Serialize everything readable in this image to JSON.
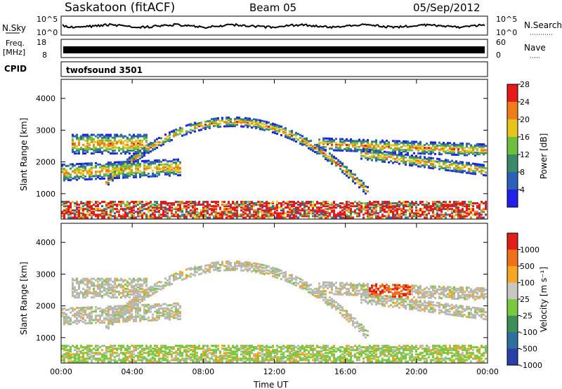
{
  "header": {
    "station": "Saskatoon (fitACF)",
    "beam": "Beam 05",
    "date": "05/Sep/2012"
  },
  "panels": {
    "nsky_label": "N.Sky",
    "nsearch_label": "N.Search",
    "freq_label_1": "Freq.",
    "freq_label_2": "[MHz]",
    "nave_label": "Nave",
    "cpid_label": "CPID",
    "cpid_value": "twofsound 3501",
    "nsky_ticks": [
      "10^5",
      "10^0"
    ],
    "nsearch_ticks": [
      "10^5",
      "10^0"
    ],
    "freq_ticks": [
      "18",
      "8"
    ],
    "nave_ticks": [
      "60",
      "0"
    ]
  },
  "chart_data": [
    {
      "type": "heatmap",
      "name": "power",
      "ylabel": "Slant Range [km]",
      "xlabel": "",
      "ylim": [
        200,
        4600
      ],
      "yticks": [
        "1000",
        "2000",
        "3000",
        "4000"
      ],
      "colorbar_label": "Power [dB]",
      "colorbar_ticks": [
        "4",
        "8",
        "12",
        "16",
        "20",
        "24",
        "28"
      ],
      "colors": [
        "#2020e8",
        "#2c5fb8",
        "#3a8a6a",
        "#6fbf3f",
        "#e6c41c",
        "#f07c1a",
        "#e41a1a"
      ]
    },
    {
      "type": "heatmap",
      "name": "velocity",
      "ylabel": "Slant Range [km]",
      "xlabel": "Time UT",
      "ylim": [
        200,
        4600
      ],
      "yticks": [
        "1000",
        "2000",
        "3000",
        "4000"
      ],
      "xticks": [
        "00:00",
        "04:00",
        "08:00",
        "12:00",
        "16:00",
        "20:00",
        "00:00"
      ],
      "colorbar_label": "Velocity [m s⁻¹]",
      "colorbar_ticks": [
        "1000",
        "500",
        "100",
        "25",
        "-25",
        "-100",
        "-500",
        "-1000"
      ],
      "colors": [
        "#2b3fa8",
        "#2f6fa0",
        "#3d8f57",
        "#7ac943",
        "#c8c8c0",
        "#f5a623",
        "#f07018",
        "#e02018"
      ]
    }
  ],
  "colors": {
    "ground_scatter": "#b8b8b0"
  }
}
